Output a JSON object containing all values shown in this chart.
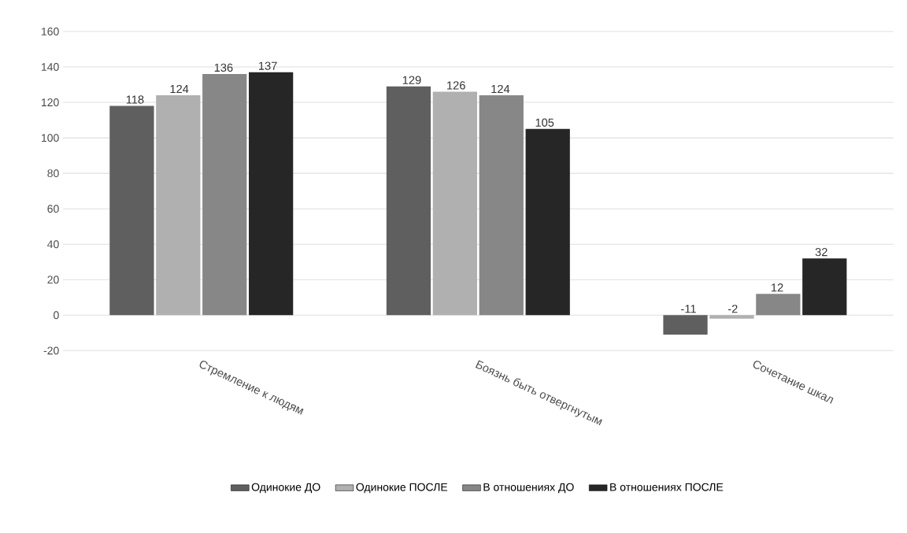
{
  "chart_data": {
    "type": "bar",
    "categories": [
      "Стремление к людям",
      "Боязнь быть отвергнутым",
      "Сочетание шкал"
    ],
    "series": [
      {
        "name": "Одинокие ДО",
        "color": "#5f5f5f",
        "values": [
          118,
          129,
          -11
        ]
      },
      {
        "name": "Одинокие ПОСЛЕ",
        "color": "#b0b0b0",
        "values": [
          124,
          126,
          -2
        ]
      },
      {
        "name": "В отношениях ДО",
        "color": "#878787",
        "values": [
          136,
          124,
          12
        ]
      },
      {
        "name": "В отношениях ПОСЛЕ",
        "color": "#262626",
        "values": [
          137,
          105,
          32
        ]
      }
    ],
    "ylim": [
      -20,
      160
    ],
    "yticks": [
      -20,
      0,
      20,
      40,
      60,
      80,
      100,
      120,
      140,
      160
    ],
    "grid": "y",
    "legend": "bottom",
    "data_labels": true
  }
}
